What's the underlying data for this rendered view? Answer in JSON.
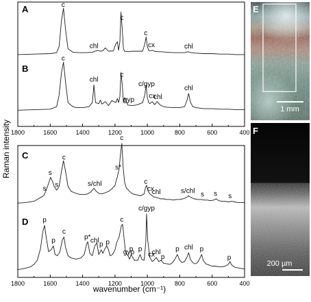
{
  "ylabel": "Raman intensity",
  "xlabel": "wavenumber (cm⁻¹)",
  "axis": {
    "xlim": [
      1800,
      400
    ],
    "ticks": [
      "1800",
      "1600",
      "1400",
      "1200",
      "1000",
      "800",
      "600",
      "400"
    ],
    "tick_values": [
      1800,
      1600,
      1400,
      1200,
      1000,
      800,
      600,
      400
    ]
  },
  "chart_data": [
    {
      "type": "line",
      "panel": "A",
      "xlim": [
        1800,
        400
      ],
      "series": [
        {
          "x": [
            1800,
            1700,
            1600,
            1560,
            1545,
            1530,
            1518,
            1505,
            1490,
            1460,
            1420,
            1380,
            1340,
            1305,
            1290,
            1275,
            1260,
            1240,
            1210,
            1195,
            1185,
            1178,
            1170,
            1163,
            1155,
            1148,
            1140,
            1120,
            1090,
            1060,
            1030,
            1016,
            1008,
            1000,
            992,
            985,
            970,
            955,
            940,
            920,
            880,
            840,
            800,
            770,
            750,
            730,
            700,
            650,
            600,
            550,
            500,
            450,
            400
          ],
          "y": [
            0.03,
            0.04,
            0.05,
            0.07,
            0.2,
            0.75,
            1.0,
            0.55,
            0.15,
            0.08,
            0.07,
            0.07,
            0.08,
            0.12,
            0.1,
            0.11,
            0.17,
            0.1,
            0.11,
            0.25,
            0.3,
            0.12,
            0.3,
            0.92,
            0.55,
            0.15,
            0.1,
            0.09,
            0.1,
            0.1,
            0.1,
            0.25,
            0.4,
            0.2,
            0.12,
            0.11,
            0.12,
            0.1,
            0.09,
            0.09,
            0.08,
            0.07,
            0.07,
            0.07,
            0.09,
            0.07,
            0.06,
            0.05,
            0.05,
            0.04,
            0.04,
            0.03,
            0.03
          ]
        }
      ],
      "annotations": [
        {
          "text": "c",
          "x": 1520
        },
        {
          "text": "chl",
          "x": 1330
        },
        {
          "text": "c",
          "x": 1158
        },
        {
          "text": "c",
          "x": 1010
        },
        {
          "text": "cx",
          "x": 975
        },
        {
          "text": "chl",
          "x": 745
        }
      ]
    },
    {
      "type": "line",
      "panel": "B",
      "xlim": [
        1800,
        400
      ],
      "series": [
        {
          "x": [
            1800,
            1700,
            1600,
            1560,
            1545,
            1530,
            1518,
            1505,
            1490,
            1460,
            1440,
            1400,
            1360,
            1340,
            1330,
            1320,
            1300,
            1290,
            1280,
            1260,
            1240,
            1220,
            1195,
            1185,
            1178,
            1170,
            1163,
            1155,
            1148,
            1140,
            1120,
            1090,
            1060,
            1030,
            1016,
            1008,
            1000,
            992,
            985,
            970,
            955,
            940,
            920,
            900,
            880,
            840,
            800,
            770,
            755,
            745,
            735,
            720,
            700,
            650,
            600,
            550,
            500,
            450,
            400
          ],
          "y": [
            0.05,
            0.06,
            0.07,
            0.12,
            0.35,
            0.8,
            1.0,
            0.6,
            0.2,
            0.12,
            0.1,
            0.1,
            0.12,
            0.2,
            0.55,
            0.2,
            0.18,
            0.25,
            0.17,
            0.22,
            0.14,
            0.24,
            0.2,
            0.28,
            0.2,
            0.32,
            0.8,
            0.55,
            0.2,
            0.3,
            0.15,
            0.14,
            0.16,
            0.2,
            0.35,
            0.55,
            0.3,
            0.2,
            0.18,
            0.22,
            0.16,
            0.22,
            0.15,
            0.12,
            0.11,
            0.1,
            0.1,
            0.12,
            0.25,
            0.38,
            0.22,
            0.12,
            0.1,
            0.08,
            0.08,
            0.07,
            0.07,
            0.06,
            0.06
          ]
        }
      ],
      "annotations": [
        {
          "text": "c",
          "x": 1520
        },
        {
          "text": "chl",
          "x": 1330
        },
        {
          "text": "c",
          "x": 1158
        },
        {
          "text": "gyp",
          "x": 1115
        },
        {
          "text": "c/gyp",
          "x": 1005
        },
        {
          "text": "cx",
          "x": 970
        },
        {
          "text": "chl",
          "x": 935
        },
        {
          "text": "chl",
          "x": 745
        }
      ]
    },
    {
      "type": "line",
      "panel": "C",
      "xlim": [
        1800,
        400
      ],
      "series": [
        {
          "x": [
            1800,
            1750,
            1700,
            1680,
            1660,
            1640,
            1625,
            1610,
            1598,
            1585,
            1575,
            1560,
            1545,
            1530,
            1518,
            1505,
            1490,
            1470,
            1450,
            1430,
            1410,
            1390,
            1370,
            1350,
            1330,
            1315,
            1300,
            1280,
            1260,
            1240,
            1220,
            1200,
            1190,
            1185,
            1175,
            1165,
            1158,
            1150,
            1140,
            1130,
            1110,
            1090,
            1060,
            1040,
            1020,
            1012,
            1005,
            995,
            985,
            975,
            960,
            940,
            920,
            900,
            880,
            860,
            840,
            820,
            800,
            780,
            760,
            745,
            730,
            710,
            690,
            670,
            650,
            630,
            610,
            590,
            575,
            560,
            540,
            520,
            500,
            480,
            460,
            440,
            420,
            400
          ],
          "y": [
            0.03,
            0.04,
            0.06,
            0.09,
            0.12,
            0.15,
            0.24,
            0.35,
            0.45,
            0.38,
            0.3,
            0.24,
            0.3,
            0.55,
            0.72,
            0.55,
            0.3,
            0.22,
            0.2,
            0.18,
            0.17,
            0.17,
            0.18,
            0.21,
            0.27,
            0.22,
            0.19,
            0.18,
            0.2,
            0.22,
            0.26,
            0.32,
            0.42,
            0.46,
            0.58,
            0.85,
            1.0,
            0.62,
            0.36,
            0.28,
            0.22,
            0.18,
            0.16,
            0.15,
            0.18,
            0.28,
            0.32,
            0.22,
            0.18,
            0.16,
            0.13,
            0.12,
            0.1,
            0.1,
            0.09,
            0.09,
            0.08,
            0.09,
            0.09,
            0.1,
            0.12,
            0.15,
            0.12,
            0.1,
            0.09,
            0.09,
            0.08,
            0.08,
            0.07,
            0.08,
            0.1,
            0.07,
            0.06,
            0.06,
            0.05,
            0.06,
            0.05,
            0.04,
            0.04,
            0.04
          ]
        }
      ],
      "annotations": [
        {
          "text": "s",
          "x": 1635
        },
        {
          "text": "s",
          "x": 1600
        },
        {
          "text": "s",
          "x": 1560
        },
        {
          "text": "c",
          "x": 1515
        },
        {
          "text": "s/chl",
          "x": 1325
        },
        {
          "text": "s*",
          "x": 1180
        },
        {
          "text": "c",
          "x": 1158
        },
        {
          "text": "c",
          "x": 1010
        },
        {
          "text": "cx",
          "x": 980
        },
        {
          "text": "chl",
          "x": 945
        },
        {
          "text": "s/chl",
          "x": 750
        },
        {
          "text": "s",
          "x": 660
        },
        {
          "text": "s",
          "x": 580
        },
        {
          "text": "s",
          "x": 490
        }
      ]
    },
    {
      "type": "line",
      "panel": "D",
      "xlim": [
        1800,
        400
      ],
      "series": [
        {
          "x": [
            1800,
            1760,
            1720,
            1700,
            1680,
            1660,
            1645,
            1635,
            1625,
            1610,
            1595,
            1580,
            1570,
            1555,
            1540,
            1525,
            1515,
            1505,
            1490,
            1470,
            1440,
            1410,
            1390,
            1375,
            1368,
            1355,
            1340,
            1325,
            1312,
            1300,
            1285,
            1275,
            1262,
            1250,
            1240,
            1230,
            1215,
            1200,
            1190,
            1175,
            1160,
            1153,
            1145,
            1135,
            1120,
            1110,
            1100,
            1090,
            1080,
            1060,
            1045,
            1035,
            1020,
            1010,
            1005,
            998,
            985,
            970,
            960,
            945,
            930,
            915,
            900,
            880,
            860,
            845,
            830,
            815,
            800,
            785,
            770,
            755,
            745,
            735,
            720,
            705,
            690,
            675,
            665,
            655,
            640,
            620,
            600,
            580,
            560,
            540,
            520,
            500,
            490,
            480,
            460,
            440,
            420,
            400
          ],
          "y": [
            0.04,
            0.06,
            0.09,
            0.13,
            0.2,
            0.4,
            0.7,
            0.8,
            0.6,
            0.35,
            0.38,
            0.45,
            0.3,
            0.28,
            0.35,
            0.55,
            0.6,
            0.42,
            0.28,
            0.24,
            0.22,
            0.24,
            0.3,
            0.48,
            0.52,
            0.32,
            0.28,
            0.45,
            0.5,
            0.3,
            0.38,
            0.32,
            0.4,
            0.45,
            0.38,
            0.28,
            0.3,
            0.38,
            0.5,
            0.6,
            0.8,
            0.82,
            0.6,
            0.35,
            0.28,
            0.22,
            0.3,
            0.25,
            0.2,
            0.2,
            0.3,
            0.22,
            0.2,
            0.5,
            1.0,
            0.55,
            0.25,
            0.18,
            0.2,
            0.25,
            0.18,
            0.2,
            0.15,
            0.14,
            0.13,
            0.16,
            0.22,
            0.3,
            0.2,
            0.16,
            0.18,
            0.26,
            0.33,
            0.22,
            0.16,
            0.14,
            0.16,
            0.24,
            0.3,
            0.2,
            0.14,
            0.12,
            0.1,
            0.1,
            0.09,
            0.09,
            0.1,
            0.13,
            0.18,
            0.12,
            0.08,
            0.07,
            0.06,
            0.05
          ]
        }
      ],
      "annotations": [
        {
          "text": "p",
          "x": 1635
        },
        {
          "text": "p",
          "x": 1580
        },
        {
          "text": "c",
          "x": 1515
        },
        {
          "text": "p*",
          "x": 1370
        },
        {
          "text": "chl",
          "x": 1325
        },
        {
          "text": "p",
          "x": 1285
        },
        {
          "text": "p",
          "x": 1245
        },
        {
          "text": "c",
          "x": 1158
        },
        {
          "text": "gyp",
          "x": 1115
        },
        {
          "text": "p",
          "x": 1100
        },
        {
          "text": "p",
          "x": 1045
        },
        {
          "text": "c/gyp",
          "x": 1005
        },
        {
          "text": "cx",
          "x": 975
        },
        {
          "text": "chl",
          "x": 945
        },
        {
          "text": "p",
          "x": 905
        },
        {
          "text": "p",
          "x": 815
        },
        {
          "text": "chl",
          "x": 745
        },
        {
          "text": "p",
          "x": 665
        },
        {
          "text": "p",
          "x": 495
        }
      ]
    }
  ],
  "micrographs": {
    "E": {
      "label": "E",
      "scale_bar": "1 mm"
    },
    "F": {
      "label": "F",
      "scale_bar": "200 µm"
    }
  },
  "colors": {
    "line": "#1a1a1a",
    "axis": "#000000",
    "label": "#ffffff"
  }
}
